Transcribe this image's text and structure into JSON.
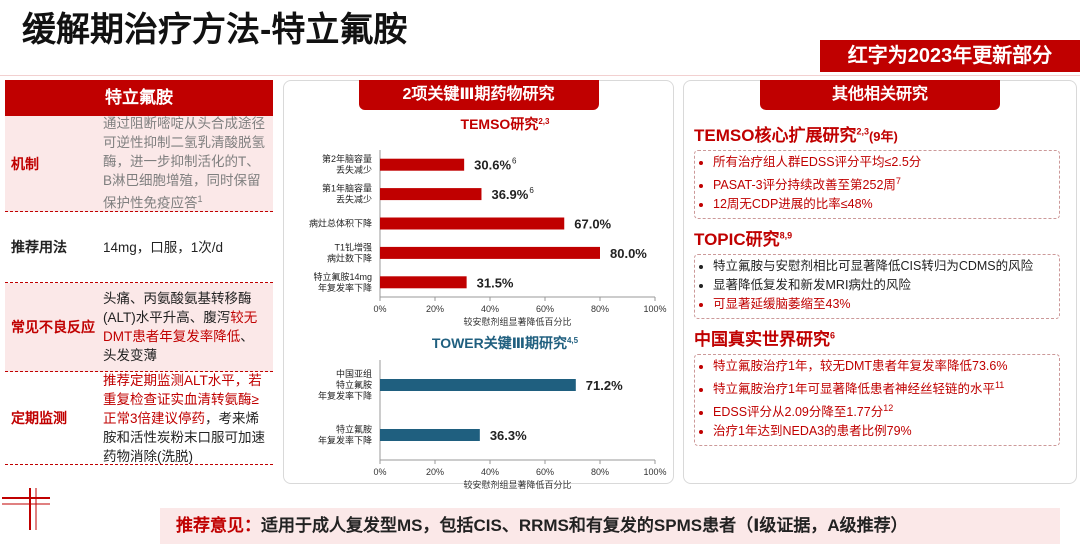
{
  "header": {
    "title": "缓解期治疗方法-特立氟胺",
    "banner": "红字为2023年更新部分"
  },
  "left_table": {
    "title": "特立氟胺",
    "rows": [
      {
        "label": "机制",
        "content": [
          {
            "text": "通过阻断嘧啶从头合成途径可逆性抑制二氢乳清酸脱氢酶，进一步抑制活化的T、B淋巴细胞增殖，同时保留保护性免疫应答",
            "color": "#7f7f7f"
          }
        ],
        "note": "1"
      },
      {
        "label": "推荐用法",
        "content": [
          {
            "text": "14mg，口服，1次/d",
            "color": "#222222"
          }
        ]
      },
      {
        "label": "常见不良反应",
        "content": [
          {
            "text": "头痛、丙氨酸氨基转移酶(ALT)水平升高、腹泻",
            "color": "#222222"
          },
          {
            "text": "较无DMT患者年复发率降低",
            "color": "#c00000"
          },
          {
            "text": "、头发变薄",
            "color": "#222222"
          }
        ]
      },
      {
        "label": "定期监测",
        "content": [
          {
            "text": "推荐定期监测ALT水平，若重复检查证实血清转氨酶≥正常3倍建议停药",
            "color": "#c00000"
          },
          {
            "text": "，考来烯胺和活性炭粉末口服可加速药物消除(洗脱)",
            "color": "#222222"
          }
        ]
      }
    ]
  },
  "middle_panel": {
    "title": "2项关键Ⅲ期药物研究"
  },
  "chart_data": [
    {
      "type": "hbar",
      "title": "TEMSO研究",
      "title_note": "2,3",
      "title_color": "#c00000",
      "categories": [
        "第2年脑容量\n丢失减少",
        "第1年脑容量\n丢失减少",
        "病灶总体积下降",
        "T1钆增强\n病灶数下降",
        "特立氟胺14mg\n年复发率下降"
      ],
      "values": [
        30.6,
        36.9,
        67.0,
        80.0,
        31.5
      ],
      "value_labels": [
        "30.6%",
        "36.9%",
        "67.0%",
        "80.0%",
        "31.5%"
      ],
      "value_label_notes": [
        "6",
        "6",
        null,
        null,
        null
      ],
      "color": "#c00000",
      "xlim": [
        0,
        100
      ],
      "xticks": [
        {
          "value": 0,
          "label": "0%"
        },
        {
          "value": 20,
          "label": "20%"
        },
        {
          "value": 40,
          "label": "40%"
        },
        {
          "value": 60,
          "label": "60%"
        },
        {
          "value": 80,
          "label": "80%"
        },
        {
          "value": 100,
          "label": "100%"
        }
      ],
      "xlabel": "较安慰剂组显著降低百分比",
      "grid": false
    },
    {
      "type": "hbar",
      "title": "TOWER关键Ⅲ期研究",
      "title_note": "4,5",
      "title_color": "#1f5f7f",
      "categories": [
        "中国亚组\n特立氟胺\n年复发率下降",
        "特立氟胺\n年复发率下降"
      ],
      "values": [
        71.2,
        36.3
      ],
      "value_labels": [
        "71.2%",
        "36.3%"
      ],
      "value_label_notes": [
        null,
        null
      ],
      "color": "#1f5f7f",
      "xlim": [
        0,
        100
      ],
      "xticks": [
        {
          "value": 0,
          "label": "0%"
        },
        {
          "value": 20,
          "label": "20%"
        },
        {
          "value": 40,
          "label": "40%"
        },
        {
          "value": 60,
          "label": "60%"
        },
        {
          "value": 80,
          "label": "80%"
        },
        {
          "value": 100,
          "label": "100%"
        }
      ],
      "xlabel": "较安慰剂组显著降低百分比",
      "grid": false
    }
  ],
  "right_panel": {
    "title": "其他相关研究",
    "sections": [
      {
        "title": "TEMSO核心扩展研究",
        "title_note": "2,3",
        "title_suffix": "(9年)",
        "bullets": [
          {
            "text": "所有治疗组人群EDSS评分平均≤2.5分",
            "color": "#c00000"
          },
          {
            "text": "PASAT-3评分持续改善至第252周",
            "note": "7",
            "color": "#c00000"
          },
          {
            "text": "12周无CDP进展的比率≤48%",
            "color": "#c00000"
          }
        ]
      },
      {
        "title": "TOPIC研究",
        "title_note": "8,9",
        "bullets": [
          {
            "text": "特立氟胺与安慰剂相比可显著降低CIS转归为CDMS的风险",
            "color": "#222222"
          },
          {
            "text": "显著降低复发和新发MRI病灶的风险",
            "color": "#222222"
          },
          {
            "text": "可显著延缓脑萎缩至43%",
            "color": "#c00000"
          }
        ]
      },
      {
        "title": "中国真实世界研究",
        "title_note": "6",
        "bullets": [
          {
            "text": "特立氟胺治疗1年，较无DMT患者年复发率降低73.6%",
            "color": "#c00000"
          },
          {
            "text": "特立氟胺治疗1年可显著降低患者神经丝轻链的水平",
            "note": "11",
            "color": "#c00000"
          },
          {
            "text": "EDSS评分从2.09分降至1.77分",
            "note": "12",
            "color": "#c00000"
          },
          {
            "text": "治疗1年达到NEDA3的患者比例79%",
            "color": "#c00000"
          }
        ]
      }
    ]
  },
  "recommendation": {
    "label": "推荐意见：",
    "text": "适用于成人复发型MS，包括CIS、RRMS和有复发的SPMS患者（Ⅰ级证据，A级推荐）"
  }
}
